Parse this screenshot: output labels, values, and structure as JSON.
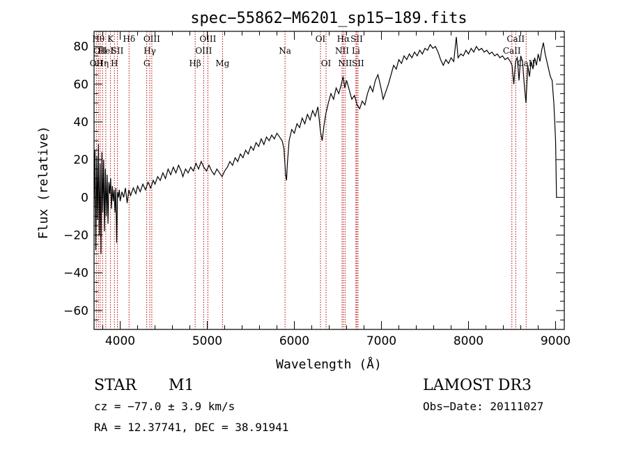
{
  "chart_data": {
    "type": "line",
    "title": "spec−55862−M6201_sp15−189.fits",
    "xlabel": "Wavelength (Å)",
    "ylabel": "Flux (relative)",
    "xlim": [
      3700,
      9100
    ],
    "ylim": [
      -70,
      88
    ],
    "xticks": [
      {
        "v": 4000,
        "label": "4000"
      },
      {
        "v": 5000,
        "label": "5000"
      },
      {
        "v": 6000,
        "label": "6000"
      },
      {
        "v": 7000,
        "label": "7000"
      },
      {
        "v": 8000,
        "label": "8000"
      },
      {
        "v": 9000,
        "label": "9000"
      }
    ],
    "yticks": [
      {
        "v": -60,
        "label": "−60"
      },
      {
        "v": -40,
        "label": "−40"
      },
      {
        "v": -20,
        "label": "−20"
      },
      {
        "v": 0,
        "label": "0"
      },
      {
        "v": 20,
        "label": "20"
      },
      {
        "v": 40,
        "label": "40"
      },
      {
        "v": 60,
        "label": "60"
      },
      {
        "v": 80,
        "label": "80"
      }
    ],
    "series": [
      {
        "points": [
          [
            3700,
            -5
          ],
          [
            3710,
            25
          ],
          [
            3720,
            -28
          ],
          [
            3730,
            22
          ],
          [
            3740,
            -12
          ],
          [
            3750,
            28
          ],
          [
            3760,
            -20
          ],
          [
            3770,
            18
          ],
          [
            3780,
            -30
          ],
          [
            3790,
            24
          ],
          [
            3800,
            -8
          ],
          [
            3810,
            20
          ],
          [
            3820,
            -18
          ],
          [
            3830,
            15
          ],
          [
            3840,
            -10
          ],
          [
            3850,
            12
          ],
          [
            3860,
            -14
          ],
          [
            3870,
            8
          ],
          [
            3880,
            2
          ],
          [
            3890,
            10
          ],
          [
            3900,
            -6
          ],
          [
            3910,
            6
          ],
          [
            3920,
            -2
          ],
          [
            3930,
            4
          ],
          [
            3940,
            -8
          ],
          [
            3950,
            5
          ],
          [
            3960,
            -24
          ],
          [
            3970,
            3
          ],
          [
            3980,
            0
          ],
          [
            3990,
            4
          ],
          [
            4000,
            -2
          ],
          [
            4020,
            3
          ],
          [
            4040,
            0
          ],
          [
            4060,
            5
          ],
          [
            4080,
            -3
          ],
          [
            4100,
            4
          ],
          [
            4120,
            1
          ],
          [
            4150,
            5
          ],
          [
            4180,
            2
          ],
          [
            4200,
            6
          ],
          [
            4230,
            3
          ],
          [
            4260,
            7
          ],
          [
            4290,
            4
          ],
          [
            4320,
            8
          ],
          [
            4350,
            5
          ],
          [
            4380,
            9
          ],
          [
            4400,
            7
          ],
          [
            4430,
            11
          ],
          [
            4460,
            9
          ],
          [
            4490,
            13
          ],
          [
            4520,
            10
          ],
          [
            4550,
            15
          ],
          [
            4580,
            12
          ],
          [
            4610,
            16
          ],
          [
            4640,
            13
          ],
          [
            4670,
            17
          ],
          [
            4700,
            14
          ],
          [
            4720,
            11
          ],
          [
            4750,
            15
          ],
          [
            4780,
            13
          ],
          [
            4810,
            16
          ],
          [
            4840,
            14
          ],
          [
            4870,
            18
          ],
          [
            4900,
            15
          ],
          [
            4930,
            19
          ],
          [
            4960,
            16
          ],
          [
            4990,
            14
          ],
          [
            5020,
            17
          ],
          [
            5050,
            14
          ],
          [
            5080,
            12
          ],
          [
            5110,
            15
          ],
          [
            5140,
            13
          ],
          [
            5170,
            11
          ],
          [
            5200,
            14
          ],
          [
            5230,
            16
          ],
          [
            5260,
            19
          ],
          [
            5290,
            17
          ],
          [
            5320,
            21
          ],
          [
            5350,
            19
          ],
          [
            5380,
            23
          ],
          [
            5410,
            21
          ],
          [
            5440,
            25
          ],
          [
            5470,
            23
          ],
          [
            5500,
            27
          ],
          [
            5530,
            25
          ],
          [
            5560,
            29
          ],
          [
            5590,
            27
          ],
          [
            5620,
            31
          ],
          [
            5650,
            28
          ],
          [
            5680,
            32
          ],
          [
            5710,
            30
          ],
          [
            5740,
            33
          ],
          [
            5770,
            31
          ],
          [
            5800,
            34
          ],
          [
            5830,
            32
          ],
          [
            5860,
            30
          ],
          [
            5880,
            26
          ],
          [
            5900,
            12
          ],
          [
            5910,
            9
          ],
          [
            5920,
            18
          ],
          [
            5940,
            30
          ],
          [
            5970,
            36
          ],
          [
            6000,
            34
          ],
          [
            6030,
            39
          ],
          [
            6060,
            37
          ],
          [
            6090,
            42
          ],
          [
            6120,
            39
          ],
          [
            6150,
            44
          ],
          [
            6180,
            41
          ],
          [
            6210,
            46
          ],
          [
            6240,
            43
          ],
          [
            6270,
            48
          ],
          [
            6300,
            35
          ],
          [
            6320,
            30
          ],
          [
            6340,
            38
          ],
          [
            6360,
            44
          ],
          [
            6390,
            50
          ],
          [
            6420,
            55
          ],
          [
            6450,
            52
          ],
          [
            6480,
            58
          ],
          [
            6510,
            55
          ],
          [
            6540,
            60
          ],
          [
            6560,
            64
          ],
          [
            6580,
            58
          ],
          [
            6600,
            62
          ],
          [
            6630,
            57
          ],
          [
            6660,
            52
          ],
          [
            6690,
            54
          ],
          [
            6720,
            49
          ],
          [
            6750,
            47
          ],
          [
            6780,
            51
          ],
          [
            6810,
            49
          ],
          [
            6840,
            55
          ],
          [
            6870,
            59
          ],
          [
            6900,
            56
          ],
          [
            6930,
            62
          ],
          [
            6960,
            65
          ],
          [
            6990,
            59
          ],
          [
            7020,
            52
          ],
          [
            7050,
            56
          ],
          [
            7080,
            60
          ],
          [
            7110,
            65
          ],
          [
            7140,
            70
          ],
          [
            7170,
            68
          ],
          [
            7200,
            73
          ],
          [
            7230,
            71
          ],
          [
            7260,
            75
          ],
          [
            7290,
            73
          ],
          [
            7320,
            76
          ],
          [
            7350,
            74
          ],
          [
            7380,
            77
          ],
          [
            7410,
            75
          ],
          [
            7440,
            78
          ],
          [
            7470,
            76
          ],
          [
            7500,
            79
          ],
          [
            7530,
            78
          ],
          [
            7560,
            81
          ],
          [
            7590,
            79
          ],
          [
            7620,
            80
          ],
          [
            7650,
            77
          ],
          [
            7680,
            73
          ],
          [
            7710,
            70
          ],
          [
            7740,
            73
          ],
          [
            7770,
            71
          ],
          [
            7800,
            74
          ],
          [
            7830,
            72
          ],
          [
            7860,
            85
          ],
          [
            7880,
            74
          ],
          [
            7910,
            76
          ],
          [
            7940,
            75
          ],
          [
            7970,
            78
          ],
          [
            8000,
            76
          ],
          [
            8030,
            79
          ],
          [
            8060,
            77
          ],
          [
            8090,
            80
          ],
          [
            8120,
            78
          ],
          [
            8150,
            79
          ],
          [
            8180,
            77
          ],
          [
            8210,
            78
          ],
          [
            8240,
            76
          ],
          [
            8270,
            77
          ],
          [
            8300,
            75
          ],
          [
            8330,
            76
          ],
          [
            8360,
            74
          ],
          [
            8390,
            75
          ],
          [
            8420,
            73
          ],
          [
            8450,
            74
          ],
          [
            8480,
            72
          ],
          [
            8500,
            70
          ],
          [
            8520,
            60
          ],
          [
            8540,
            72
          ],
          [
            8560,
            74
          ],
          [
            8580,
            62
          ],
          [
            8600,
            75
          ],
          [
            8620,
            72
          ],
          [
            8640,
            60
          ],
          [
            8660,
            50
          ],
          [
            8680,
            70
          ],
          [
            8700,
            64
          ],
          [
            8720,
            72
          ],
          [
            8740,
            68
          ],
          [
            8760,
            74
          ],
          [
            8780,
            70
          ],
          [
            8800,
            76
          ],
          [
            8820,
            72
          ],
          [
            8840,
            78
          ],
          [
            8860,
            82
          ],
          [
            8880,
            76
          ],
          [
            8900,
            72
          ],
          [
            8920,
            68
          ],
          [
            8940,
            64
          ],
          [
            8960,
            62
          ],
          [
            8980,
            50
          ],
          [
            9000,
            30
          ],
          [
            9010,
            0
          ]
        ]
      }
    ],
    "lines": [
      {
        "w": 3727,
        "label": "OII",
        "row": 2
      },
      {
        "w": 3750,
        "label": "Hθ",
        "row": 0
      },
      {
        "w": 3770,
        "label": "OII",
        "row": 1
      },
      {
        "w": 3798,
        "label": "Hη",
        "row": 2
      },
      {
        "w": 3835,
        "label": "HeI",
        "row": 1
      },
      {
        "w": 3889,
        "label": "K",
        "row": 0
      },
      {
        "w": 3934,
        "label": "H",
        "row": 2
      },
      {
        "w": 3968,
        "label": "SII",
        "row": 1
      },
      {
        "w": 4102,
        "label": "Hδ",
        "row": 0
      },
      {
        "w": 4305,
        "label": "G",
        "row": 2
      },
      {
        "w": 4340,
        "label": "Hγ",
        "row": 1
      },
      {
        "w": 4363,
        "label": "OIII",
        "row": 0
      },
      {
        "w": 4861,
        "label": "Hβ",
        "row": 2
      },
      {
        "w": 4959,
        "label": "OIII",
        "row": 1
      },
      {
        "w": 5007,
        "label": "OIII",
        "row": 0
      },
      {
        "w": 5175,
        "label": "Mg",
        "row": 2
      },
      {
        "w": 5893,
        "label": "Na",
        "row": 1
      },
      {
        "w": 6300,
        "label": "OI",
        "row": 0
      },
      {
        "w": 6364,
        "label": "OI",
        "row": 2
      },
      {
        "w": 6548,
        "label": "NII",
        "row": 1
      },
      {
        "w": 6563,
        "label": "Hα",
        "row": 0
      },
      {
        "w": 6583,
        "label": "NII",
        "row": 2
      },
      {
        "w": 6707,
        "label": "Li",
        "row": 1
      },
      {
        "w": 6716,
        "label": "SII",
        "row": 0
      },
      {
        "w": 6731,
        "label": "SII",
        "row": 2
      },
      {
        "w": 8498,
        "label": "CaII",
        "row": 1
      },
      {
        "w": 8542,
        "label": "CaII",
        "row": 0
      },
      {
        "w": 8662,
        "label": "CaII",
        "row": 2
      }
    ],
    "grid": false,
    "legend": "none"
  },
  "info": {
    "class": "STAR",
    "subclass": "M1",
    "survey": "LAMOST DR3",
    "cz": "cz = −77.0 ± 3.9 km/s",
    "obsdate": "Obs−Date: 20111027",
    "radec": "RA =  12.37741, DEC =  38.91941"
  }
}
